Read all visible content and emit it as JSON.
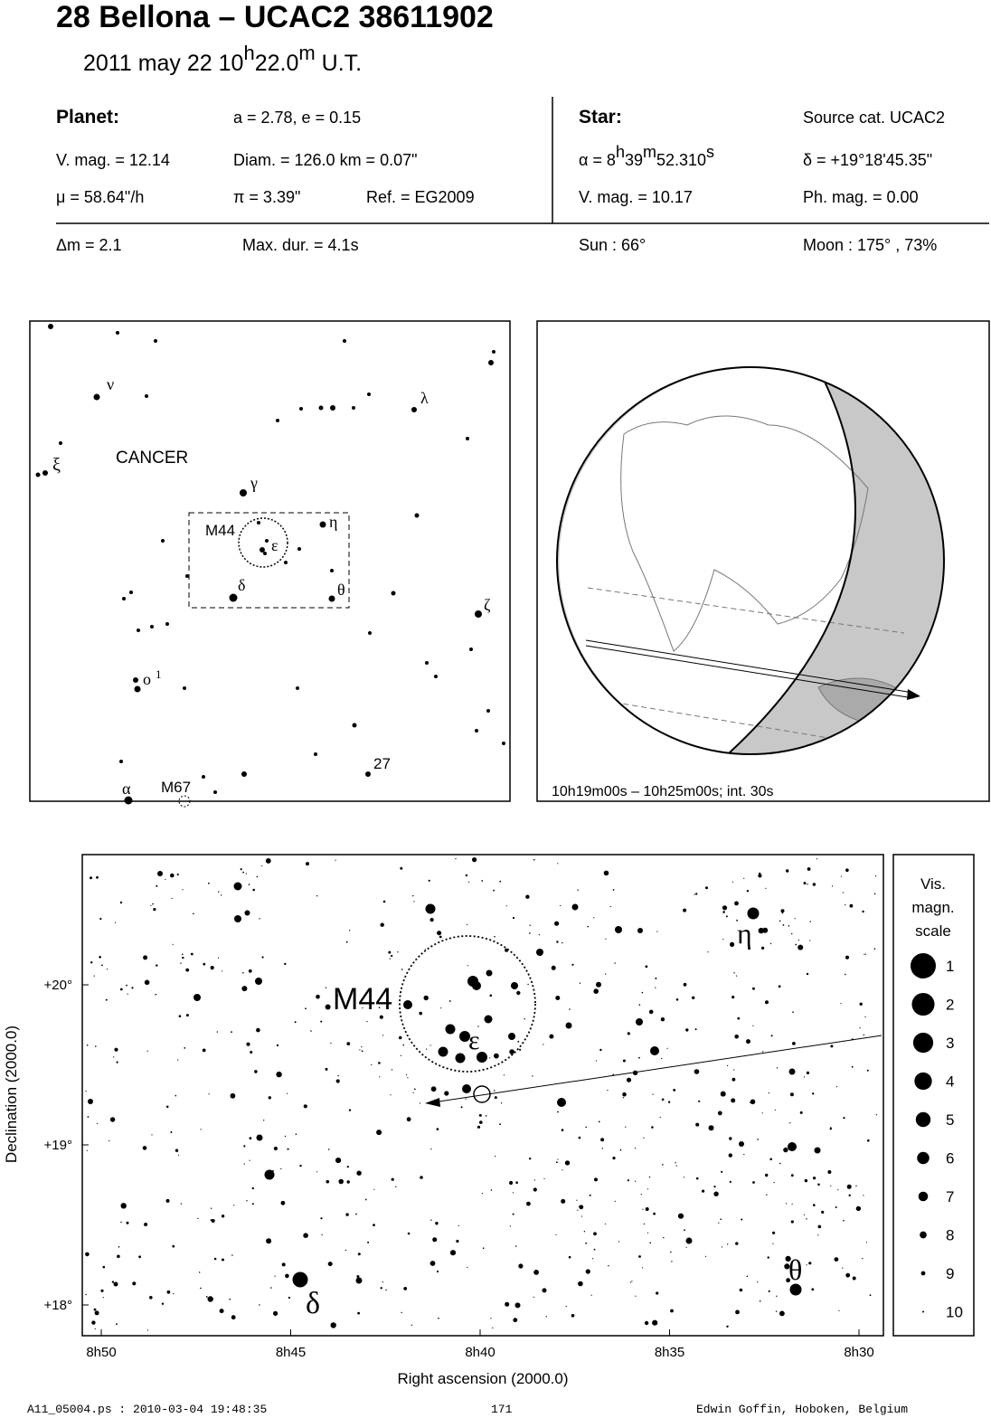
{
  "header": {
    "title": "28 Bellona  –  UCAC2 38611902",
    "date": [
      "2011 may 22  10",
      "h",
      "22.0",
      "m",
      " U.T."
    ]
  },
  "planet": {
    "heading": "Planet:",
    "orbit": "a = 2.78, e = 0.15",
    "vmag": "V. mag. = 12.14",
    "diam": "Diam. = 126.0 km = 0.07\"",
    "mu": "μ =  58.64\"/h",
    "pi": "π =  3.39\"",
    "ref": "Ref. = EG2009"
  },
  "star": {
    "heading": "Star:",
    "source": "Source cat.  UCAC2",
    "ra": [
      "α =  8",
      "h",
      "39",
      "m",
      "52.310",
      "s"
    ],
    "dec": "δ = +19°18'45.35\"",
    "vmag": "V. mag. = 10.17",
    "phmag": "Ph. mag. =  0.00"
  },
  "event": {
    "dm": "Δm = 2.1",
    "maxdur": "Max. dur. = 4.1s",
    "sun": "Sun :  66°",
    "moon": "Moon : 175° , 73%"
  },
  "finder": {
    "constellation": "CANCER",
    "labels": [
      "ν",
      "ξ",
      "γ",
      "M44",
      "η",
      "ε",
      "δ",
      "θ",
      "ζ",
      "λ",
      "ο",
      "1",
      "α",
      "M67",
      "27"
    ]
  },
  "globe": {
    "caption": "10h19m00s – 10h25m00s; int. 30s"
  },
  "detail": {
    "labels": [
      "M44",
      "ε",
      "η",
      "δ",
      "θ"
    ],
    "xticks": [
      "8h50",
      "8h45",
      "8h40",
      "8h35",
      "8h30"
    ],
    "yticks": [
      "+18°",
      "+19°",
      "+20°"
    ],
    "xlabel": "Right ascension (2000.0)",
    "ylabel": "Declination (2000.0)",
    "legend": {
      "title": [
        "Vis.",
        "magn.",
        "scale"
      ],
      "magnitudes": [
        1,
        2,
        3,
        4,
        5,
        6,
        7,
        8,
        9,
        10
      ]
    }
  },
  "footer": {
    "file": "A11_05004.ps : 2010-03-04 19:48:35",
    "page": "171",
    "author": "Edwin Goffin, Hoboken, Belgium"
  }
}
